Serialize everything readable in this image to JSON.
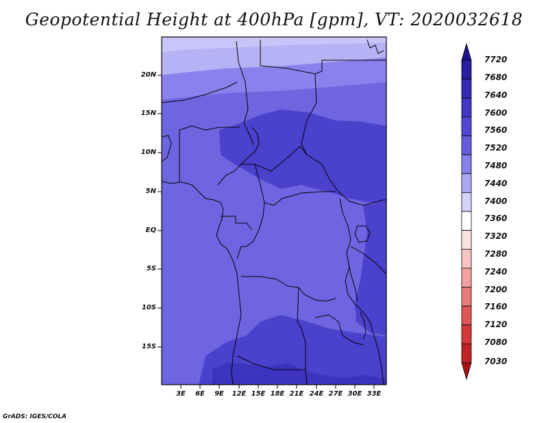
{
  "title": "Geopotential Height at 400hPa [gpm], VT: 2020032618",
  "credit": "GrADS: IGES/COLA",
  "map": {
    "lat_ticks": [
      "20N",
      "15N",
      "10N",
      "5N",
      "EQ",
      "5S",
      "10S",
      "15S"
    ],
    "lon_ticks": [
      "3E",
      "6E",
      "9E",
      "12E",
      "15E",
      "18E",
      "21E",
      "24E",
      "27E",
      "30E",
      "33E"
    ],
    "field_colors": {
      "c7480": "#b6b2f6",
      "c7520": "#8a82ec",
      "c7560": "#6e66e0",
      "c7600": "#4a42cc"
    }
  },
  "colorbar": {
    "levels": [
      "7720",
      "7680",
      "7640",
      "7600",
      "7560",
      "7520",
      "7480",
      "7440",
      "7400",
      "7360",
      "7320",
      "7280",
      "7240",
      "7200",
      "7160",
      "7120",
      "7080",
      "7030"
    ],
    "colors": [
      "#1a128a",
      "#271ea0",
      "#342bb4",
      "#4038c4",
      "#5048d2",
      "#655fde",
      "#8680ea",
      "#aba7f3",
      "#d5d3fa",
      "#ffffff",
      "#fde2e2",
      "#f8c4c4",
      "#f2a0a0",
      "#ea7c7c",
      "#e05656",
      "#d43838",
      "#c02424",
      "#a81414"
    ]
  }
}
